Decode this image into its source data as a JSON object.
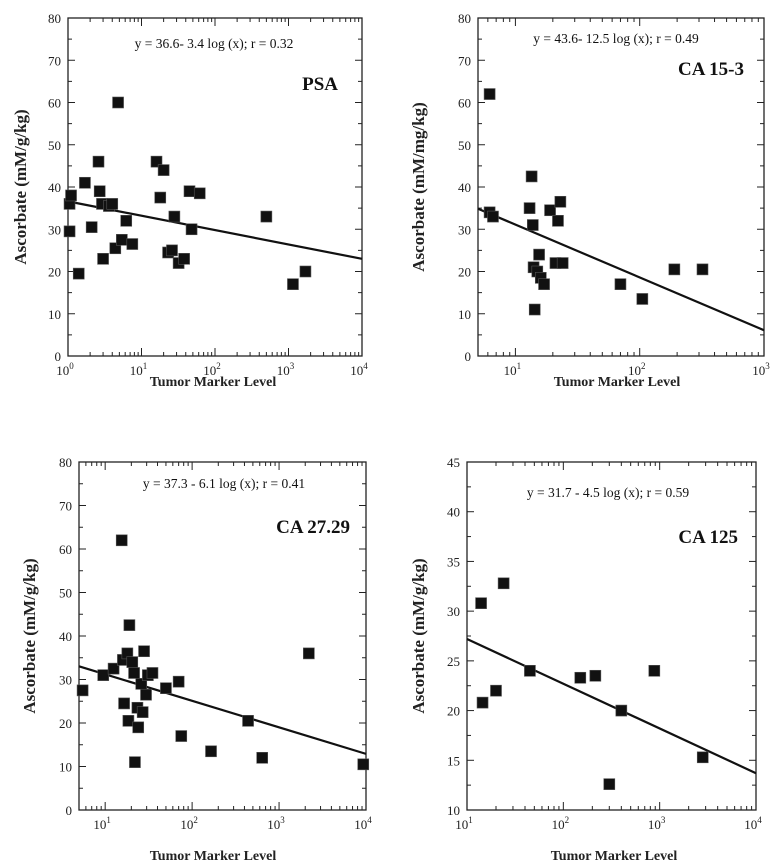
{
  "colors": {
    "marker": "#111111",
    "line": "#111111",
    "axis": "#222222"
  },
  "chart_data": [
    {
      "type": "scatter",
      "name": "PSA",
      "equation": "y = 36.6- 3.4 log (x);  r = 0.32",
      "xlabel": "Tumor Marker Level",
      "ylabel": "Ascorbate (mM/g/kg)",
      "xscale": "log",
      "xlim": [
        1,
        10000
      ],
      "ylim": [
        0,
        80
      ],
      "yticks": [
        "0",
        "10",
        "20",
        "30",
        "40",
        "50",
        "60",
        "70",
        "80"
      ],
      "xticks": [
        {
          "base": "10",
          "exp": "0"
        },
        {
          "base": "10",
          "exp": "1"
        },
        {
          "base": "10",
          "exp": "2"
        },
        {
          "base": "10",
          "exp": "3"
        },
        {
          "base": "10",
          "exp": "4"
        }
      ],
      "fit": {
        "intercept": 36.6,
        "slope": -3.4
      },
      "points": [
        [
          1.05,
          29.5
        ],
        [
          1.05,
          36
        ],
        [
          1.1,
          38
        ],
        [
          1.4,
          19.5
        ],
        [
          1.7,
          41
        ],
        [
          2.1,
          30.5
        ],
        [
          2.6,
          46
        ],
        [
          2.7,
          39
        ],
        [
          2.9,
          36
        ],
        [
          3.0,
          23
        ],
        [
          3.6,
          35.5
        ],
        [
          4.0,
          36
        ],
        [
          4.4,
          25.5
        ],
        [
          4.8,
          60
        ],
        [
          5.4,
          27.5
        ],
        [
          6.2,
          32
        ],
        [
          7.5,
          26.5
        ],
        [
          16,
          46
        ],
        [
          18,
          37.5
        ],
        [
          20,
          44
        ],
        [
          23,
          24.5
        ],
        [
          26,
          25
        ],
        [
          28,
          33
        ],
        [
          32,
          22
        ],
        [
          38,
          23
        ],
        [
          45,
          39
        ],
        [
          48,
          30
        ],
        [
          62,
          38.5
        ],
        [
          500,
          33
        ],
        [
          1150,
          17
        ],
        [
          1700,
          20
        ]
      ]
    },
    {
      "type": "scatter",
      "name": "CA 15-3",
      "equation": "y = 43.6- 12.5 log (x);  r = 0.49",
      "xlabel": "Tumor Marker Level",
      "ylabel": "Ascorbate (mM/mg/kg)",
      "xscale": "log",
      "xlim": [
        5,
        1000
      ],
      "ylim": [
        0,
        80
      ],
      "yticks": [
        "0",
        "10",
        "20",
        "30",
        "40",
        "50",
        "60",
        "70",
        "80"
      ],
      "xticks": [
        {
          "base": "10",
          "exp": "1"
        },
        {
          "base": "10",
          "exp": "2"
        },
        {
          "base": "10",
          "exp": "3"
        }
      ],
      "fit": {
        "intercept": 43.6,
        "slope": -12.5
      },
      "points": [
        [
          6.2,
          62
        ],
        [
          6.2,
          34
        ],
        [
          6.6,
          33
        ],
        [
          13,
          35
        ],
        [
          13.5,
          42.5
        ],
        [
          13.8,
          31
        ],
        [
          14,
          21
        ],
        [
          14.3,
          11
        ],
        [
          15,
          20
        ],
        [
          15.5,
          24
        ],
        [
          16,
          18.5
        ],
        [
          17,
          17
        ],
        [
          19,
          34.5
        ],
        [
          21,
          22
        ],
        [
          22,
          32
        ],
        [
          23,
          36.5
        ],
        [
          24,
          22
        ],
        [
          70,
          17
        ],
        [
          105,
          13.5
        ],
        [
          190,
          20.5
        ],
        [
          320,
          20.5
        ]
      ]
    },
    {
      "type": "scatter",
      "name": "CA 27.29",
      "equation": "y = 37.3 - 6.1 log (x);  r = 0.41",
      "xlabel": "Tumor Marker Level",
      "ylabel": "Ascorbate (mM/g/kg)",
      "xscale": "log",
      "xlim": [
        5,
        10000
      ],
      "ylim": [
        0,
        80
      ],
      "yticks": [
        "0",
        "10",
        "20",
        "30",
        "40",
        "50",
        "60",
        "70",
        "80"
      ],
      "xticks": [
        {
          "base": "10",
          "exp": "1"
        },
        {
          "base": "10",
          "exp": "2"
        },
        {
          "base": "10",
          "exp": "3"
        },
        {
          "base": "10",
          "exp": "4"
        }
      ],
      "fit": {
        "intercept": 37.3,
        "slope": -6.1
      },
      "points": [
        [
          5.5,
          27.5
        ],
        [
          9.5,
          31
        ],
        [
          12.5,
          32.5
        ],
        [
          15.5,
          62
        ],
        [
          16,
          34.5
        ],
        [
          16.5,
          24.5
        ],
        [
          18,
          36
        ],
        [
          18.5,
          20.5
        ],
        [
          19,
          42.5
        ],
        [
          20.5,
          34
        ],
        [
          21.5,
          31.5
        ],
        [
          22,
          11
        ],
        [
          23.5,
          23.5
        ],
        [
          24,
          19
        ],
        [
          26,
          29
        ],
        [
          27,
          22.5
        ],
        [
          28,
          36.5
        ],
        [
          29.5,
          26.5
        ],
        [
          31,
          31
        ],
        [
          35,
          31.5
        ],
        [
          50,
          28
        ],
        [
          70,
          29.5
        ],
        [
          75,
          17
        ],
        [
          165,
          13.5
        ],
        [
          440,
          20.5
        ],
        [
          640,
          12
        ],
        [
          2200,
          36
        ],
        [
          9300,
          10.5
        ]
      ]
    },
    {
      "type": "scatter",
      "name": "CA 125",
      "equation": "y = 31.7 - 4.5 log (x);  r = 0.59",
      "xlabel": "Tumor Marker Level",
      "ylabel": "Ascorbate (mM/g/kg)",
      "xscale": "log",
      "xlim": [
        10,
        10000
      ],
      "ylim": [
        10,
        45
      ],
      "yticks": [
        "10",
        "15",
        "20",
        "25",
        "30",
        "35",
        "40",
        "45"
      ],
      "xticks": [
        {
          "base": "10",
          "exp": "1"
        },
        {
          "base": "10",
          "exp": "2"
        },
        {
          "base": "10",
          "exp": "3"
        },
        {
          "base": "10",
          "exp": "4"
        }
      ],
      "fit": {
        "intercept": 31.7,
        "slope": -4.5
      },
      "points": [
        [
          14,
          30.8
        ],
        [
          14.5,
          20.8
        ],
        [
          20,
          22
        ],
        [
          24,
          32.8
        ],
        [
          45,
          24
        ],
        [
          150,
          23.3
        ],
        [
          215,
          23.5
        ],
        [
          300,
          12.6
        ],
        [
          400,
          20
        ],
        [
          880,
          24
        ],
        [
          2800,
          15.3
        ]
      ]
    }
  ]
}
